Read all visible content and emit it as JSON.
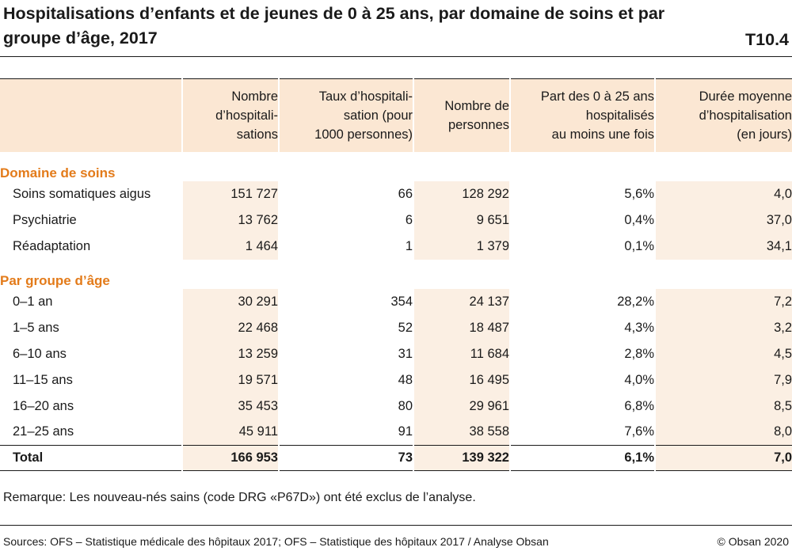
{
  "title": "Hospitalisations d’enfants et de jeunes de 0 à 25 ans, par domaine de soins et par groupe d’âge, 2017",
  "table_id": "T10.4",
  "headers": [
    "",
    "Nombre d’hospitali-sations",
    "Taux d’hospitali-sation (pour 1000 personnes)",
    "Nombre de personnes",
    "Part des 0 à 25 ans hospitalisés au moins une fois",
    "Durée moyenne d’hospitalisation (en jours)"
  ],
  "header_lines": [
    [
      ""
    ],
    [
      "Nombre",
      "d’hospitali-",
      "sations"
    ],
    [
      "Taux d’hospitali-",
      "sation (pour",
      "1000 personnes)"
    ],
    [
      "Nombre de",
      "personnes"
    ],
    [
      "Part des 0 à 25 ans",
      "hospitalisés",
      "au moins une fois"
    ],
    [
      "Durée moyenne",
      "d’hospitalisation",
      "(en jours)"
    ]
  ],
  "sections": [
    {
      "title": "Domaine de soins",
      "rows": [
        [
          "Soins somatiques aigus",
          "151 727",
          "66",
          "128 292",
          "5,6%",
          "4,0"
        ],
        [
          "Psychiatrie",
          "13 762",
          "6",
          "9 651",
          "0,4%",
          "37,0"
        ],
        [
          "Réadaptation",
          "1 464",
          "1",
          "1 379",
          "0,1%",
          "34,1"
        ]
      ]
    },
    {
      "title": "Par groupe d’âge",
      "rows": [
        [
          "0–1 an",
          "30 291",
          "354",
          "24 137",
          "28,2%",
          "7,2"
        ],
        [
          "1–5 ans",
          "22 468",
          "52",
          "18 487",
          "4,3%",
          "3,2"
        ],
        [
          "6–10 ans",
          "13 259",
          "31",
          "11 684",
          "2,8%",
          "4,5"
        ],
        [
          "11–15 ans",
          "19 571",
          "48",
          "16 495",
          "4,0%",
          "7,9"
        ],
        [
          "16–20 ans",
          "35 453",
          "80",
          "29 961",
          "6,8%",
          "8,5"
        ],
        [
          "21–25 ans",
          "45 911",
          "91",
          "38 558",
          "7,6%",
          "8,0"
        ]
      ]
    }
  ],
  "total": [
    "Total",
    "166 953",
    "73",
    "139 322",
    "6,1%",
    "7,0"
  ],
  "remark": "Remarque: Les nouveau-nés sains (code DRG «P67D») ont été exclus de l’analyse.",
  "sources": "Sources: OFS – Statistique médicale des hôpitaux 2017; OFS – Statistique des hôpitaux 2017 / Analyse Obsan",
  "copyright": "© Obsan 2020",
  "colors": {
    "header_bg": "#fbe7d3",
    "shaded_col_bg": "#fbefe3",
    "section_title": "#e37b1a",
    "text": "#1a1a1a"
  }
}
